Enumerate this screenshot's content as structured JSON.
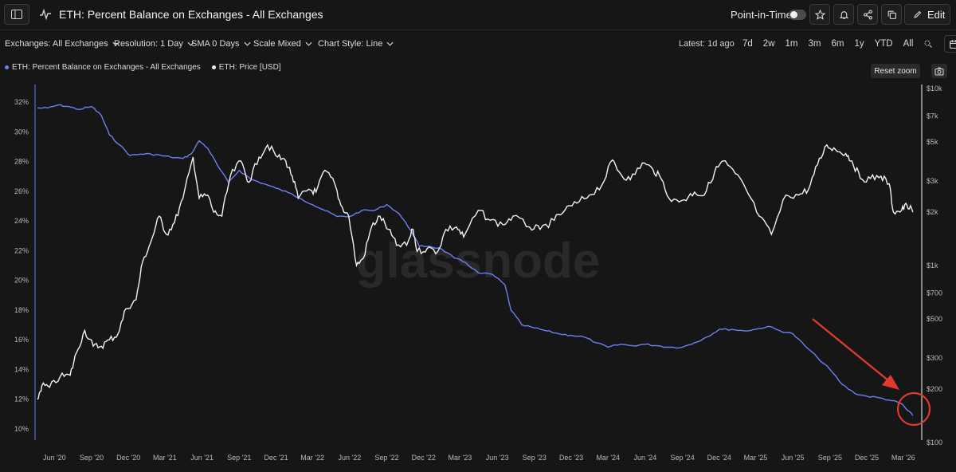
{
  "header": {
    "title": "ETH: Percent Balance on Exchanges - All Exchanges",
    "point_in_time_label": "Point-in-Time",
    "edit_label": "Edit"
  },
  "controls": {
    "exchanges": "Exchanges: All Exchanges",
    "resolution": "Resolution: 1 Day",
    "sma": "SMA 0 Days",
    "scale": "Scale Mixed",
    "chart_style": "Chart Style: Line",
    "latest": "Latest: 1d ago",
    "ranges": [
      "7d",
      "2w",
      "1m",
      "3m",
      "6m",
      "1y",
      "YTD",
      "All"
    ]
  },
  "legend": {
    "series1": "ETH: Percent Balance on Exchanges - All Exchanges",
    "series2": "ETH: Price [USD]"
  },
  "reset_zoom_label": "Reset zoom",
  "watermark": "glassnode",
  "colors": {
    "balance": "#6f7ff0",
    "price": "#f2f2f2",
    "annotation": "#e03a2f",
    "background": "#161616"
  },
  "icons": [
    "sidebar-toggle-icon",
    "pulse-icon",
    "star-icon",
    "bell-icon",
    "share-icon",
    "copy-icon",
    "pencil-icon",
    "chevron-down-icon",
    "search-zoom-icon",
    "calendar-icon",
    "camera-icon"
  ],
  "chart_data": {
    "type": "line",
    "x_ticks": [
      "Jun '20",
      "Sep '20",
      "Dec '20",
      "Mar '21",
      "Jun '21",
      "Sep '21",
      "Dec '21",
      "Mar '22",
      "Jun '22",
      "Sep '22",
      "Dec '22",
      "Mar '23",
      "Jun '23",
      "Sep '23",
      "Dec '23",
      "Mar '24",
      "Jun '24",
      "Sep '24",
      "Dec '24",
      "Mar '25",
      "Jun '25",
      "Sep '25",
      "Dec '25",
      "Mar '26"
    ],
    "y_left_ticks": [
      "32%",
      "30%",
      "28%",
      "26%",
      "24%",
      "22%",
      "20%",
      "18%",
      "16%",
      "14%",
      "12%",
      "10%"
    ],
    "y_left_values": [
      32,
      30,
      28,
      26,
      24,
      22,
      20,
      18,
      16,
      14,
      12,
      10
    ],
    "y_left_range": [
      10,
      32
    ],
    "y_right_ticks": [
      "$10k",
      "$7k",
      "$5k",
      "$3k",
      "$2k",
      "$1k",
      "$700",
      "$500",
      "$300",
      "$200",
      "$100"
    ],
    "y_right_values": [
      10000,
      7000,
      5000,
      3000,
      2000,
      1000,
      700,
      500,
      300,
      200,
      100
    ],
    "y_right_range": [
      100,
      10000
    ],
    "y_right_scale": "log",
    "x_range": [
      "2020-04-20",
      "2026-04-06"
    ],
    "grid": false,
    "series": [
      {
        "name": "ETH: Percent Balance on Exchanges - All Exchanges",
        "axis": "left",
        "color": "#6f7ff0",
        "points": [
          [
            "2020-04-20",
            31.6
          ],
          [
            "2020-05-15",
            31.6
          ],
          [
            "2020-06-10",
            31.8
          ],
          [
            "2020-07-05",
            31.7
          ],
          [
            "2020-08-01",
            31.5
          ],
          [
            "2020-09-01",
            31.7
          ],
          [
            "2020-09-25",
            31.1
          ],
          [
            "2020-10-15",
            29.8
          ],
          [
            "2020-11-10",
            29.1
          ],
          [
            "2020-12-05",
            28.4
          ],
          [
            "2021-01-01",
            28.5
          ],
          [
            "2021-01-25",
            28.5
          ],
          [
            "2021-02-20",
            28.4
          ],
          [
            "2021-03-15",
            28.3
          ],
          [
            "2021-04-15",
            28.2
          ],
          [
            "2021-05-05",
            28.5
          ],
          [
            "2021-05-25",
            29.4
          ],
          [
            "2021-06-15",
            28.9
          ],
          [
            "2021-07-10",
            27.7
          ],
          [
            "2021-08-05",
            26.6
          ],
          [
            "2021-09-01",
            27.4
          ],
          [
            "2021-10-01",
            26.8
          ],
          [
            "2021-11-01",
            26.5
          ],
          [
            "2021-12-01",
            26.2
          ],
          [
            "2022-01-01",
            25.9
          ],
          [
            "2022-02-01",
            25.5
          ],
          [
            "2022-03-01",
            25.1
          ],
          [
            "2022-04-01",
            24.7
          ],
          [
            "2022-05-01",
            24.3
          ],
          [
            "2022-06-01",
            24.3
          ],
          [
            "2022-07-01",
            24.7
          ],
          [
            "2022-08-01",
            24.7
          ],
          [
            "2022-09-01",
            25.1
          ],
          [
            "2022-10-01",
            24.5
          ],
          [
            "2022-11-01",
            23.3
          ],
          [
            "2022-11-20",
            22.3
          ],
          [
            "2022-12-15",
            22.3
          ],
          [
            "2023-01-15",
            22.1
          ],
          [
            "2023-02-15",
            21.5
          ],
          [
            "2023-03-15",
            21.2
          ],
          [
            "2023-04-15",
            20.5
          ],
          [
            "2023-05-20",
            20.4
          ],
          [
            "2023-06-20",
            19.7
          ],
          [
            "2023-07-05",
            18.0
          ],
          [
            "2023-08-01",
            17.0
          ],
          [
            "2023-09-01",
            16.8
          ],
          [
            "2023-10-01",
            16.6
          ],
          [
            "2023-11-01",
            16.4
          ],
          [
            "2023-12-01",
            16.3
          ],
          [
            "2024-01-01",
            16.2
          ],
          [
            "2024-02-01",
            15.8
          ],
          [
            "2024-03-01",
            15.5
          ],
          [
            "2024-04-01",
            15.7
          ],
          [
            "2024-05-01",
            15.6
          ],
          [
            "2024-06-01",
            15.7
          ],
          [
            "2024-07-01",
            15.6
          ],
          [
            "2024-08-01",
            15.5
          ],
          [
            "2024-09-01",
            15.5
          ],
          [
            "2024-10-01",
            15.8
          ],
          [
            "2024-11-01",
            16.2
          ],
          [
            "2024-12-01",
            16.7
          ],
          [
            "2025-01-01",
            16.7
          ],
          [
            "2025-02-01",
            16.6
          ],
          [
            "2025-03-01",
            16.7
          ],
          [
            "2025-04-01",
            16.9
          ],
          [
            "2025-05-01",
            16.6
          ],
          [
            "2025-06-01",
            16.4
          ],
          [
            "2025-07-01",
            15.6
          ],
          [
            "2025-08-01",
            14.8
          ],
          [
            "2025-09-01",
            14.0
          ],
          [
            "2025-10-01",
            13.0
          ],
          [
            "2025-11-01",
            12.4
          ],
          [
            "2025-12-01",
            12.2
          ],
          [
            "2026-01-01",
            12.1
          ],
          [
            "2026-02-01",
            11.9
          ],
          [
            "2026-02-25",
            11.7
          ],
          [
            "2026-03-10",
            11.3
          ],
          [
            "2026-03-25",
            10.9
          ]
        ]
      },
      {
        "name": "ETH: Price [USD]",
        "axis": "right",
        "color": "#f2f2f2",
        "points": [
          [
            "2020-04-20",
            175
          ],
          [
            "2020-05-01",
            210
          ],
          [
            "2020-05-20",
            205
          ],
          [
            "2020-06-15",
            235
          ],
          [
            "2020-07-10",
            240
          ],
          [
            "2020-07-25",
            320
          ],
          [
            "2020-08-15",
            430
          ],
          [
            "2020-09-05",
            350
          ],
          [
            "2020-09-25",
            350
          ],
          [
            "2020-10-15",
            380
          ],
          [
            "2020-11-05",
            410
          ],
          [
            "2020-11-25",
            570
          ],
          [
            "2020-12-20",
            640
          ],
          [
            "2021-01-05",
            1050
          ],
          [
            "2021-01-25",
            1350
          ],
          [
            "2021-02-15",
            1900
          ],
          [
            "2021-03-05",
            1500
          ],
          [
            "2021-03-25",
            1750
          ],
          [
            "2021-04-15",
            2400
          ],
          [
            "2021-05-10",
            4100
          ],
          [
            "2021-05-25",
            2400
          ],
          [
            "2021-06-15",
            2500
          ],
          [
            "2021-06-30",
            2000
          ],
          [
            "2021-07-20",
            1900
          ],
          [
            "2021-08-10",
            3200
          ],
          [
            "2021-09-05",
            3900
          ],
          [
            "2021-09-25",
            2950
          ],
          [
            "2021-10-20",
            4100
          ],
          [
            "2021-11-10",
            4800
          ],
          [
            "2021-12-05",
            4100
          ],
          [
            "2021-12-25",
            3900
          ],
          [
            "2022-01-10",
            3200
          ],
          [
            "2022-01-25",
            2400
          ],
          [
            "2022-02-20",
            2700
          ],
          [
            "2022-03-10",
            2600
          ],
          [
            "2022-04-01",
            3450
          ],
          [
            "2022-04-25",
            2900
          ],
          [
            "2022-05-10",
            2200
          ],
          [
            "2022-05-30",
            1900
          ],
          [
            "2022-06-18",
            1000
          ],
          [
            "2022-07-05",
            1100
          ],
          [
            "2022-07-25",
            1650
          ],
          [
            "2022-08-15",
            1900
          ],
          [
            "2022-09-05",
            1600
          ],
          [
            "2022-09-25",
            1300
          ],
          [
            "2022-10-20",
            1300
          ],
          [
            "2022-11-05",
            1600
          ],
          [
            "2022-11-15",
            1200
          ],
          [
            "2022-12-10",
            1250
          ],
          [
            "2023-01-05",
            1200
          ],
          [
            "2023-01-25",
            1600
          ],
          [
            "2023-02-20",
            1650
          ],
          [
            "2023-03-10",
            1450
          ],
          [
            "2023-04-15",
            2050
          ],
          [
            "2023-05-15",
            1800
          ],
          [
            "2023-06-15",
            1700
          ],
          [
            "2023-07-10",
            1900
          ],
          [
            "2023-08-20",
            1650
          ],
          [
            "2023-09-15",
            1600
          ],
          [
            "2023-10-20",
            1800
          ],
          [
            "2023-11-15",
            2050
          ],
          [
            "2023-12-15",
            2250
          ],
          [
            "2024-01-15",
            2500
          ],
          [
            "2024-02-15",
            2850
          ],
          [
            "2024-03-12",
            3950
          ],
          [
            "2024-04-01",
            3300
          ],
          [
            "2024-04-25",
            3050
          ],
          [
            "2024-05-25",
            3800
          ],
          [
            "2024-06-20",
            3500
          ],
          [
            "2024-07-10",
            3100
          ],
          [
            "2024-08-05",
            2300
          ],
          [
            "2024-09-05",
            2350
          ],
          [
            "2024-10-01",
            2600
          ],
          [
            "2024-10-25",
            2500
          ],
          [
            "2024-11-20",
            3400
          ],
          [
            "2024-12-10",
            3900
          ],
          [
            "2025-01-10",
            3300
          ],
          [
            "2025-02-05",
            2700
          ],
          [
            "2025-03-10",
            1900
          ],
          [
            "2025-04-09",
            1500
          ],
          [
            "2025-05-15",
            2500
          ],
          [
            "2025-06-15",
            2500
          ],
          [
            "2025-07-10",
            2700
          ],
          [
            "2025-08-01",
            3700
          ],
          [
            "2025-08-24",
            4800
          ],
          [
            "2025-09-15",
            4500
          ],
          [
            "2025-10-10",
            4300
          ],
          [
            "2025-10-25",
            3900
          ],
          [
            "2025-11-15",
            3100
          ],
          [
            "2025-12-10",
            3100
          ],
          [
            "2026-01-05",
            3200
          ],
          [
            "2026-01-25",
            2900
          ],
          [
            "2026-02-05",
            2000
          ],
          [
            "2026-02-25",
            2050
          ],
          [
            "2026-03-10",
            2200
          ],
          [
            "2026-03-25",
            2000
          ]
        ]
      }
    ]
  }
}
